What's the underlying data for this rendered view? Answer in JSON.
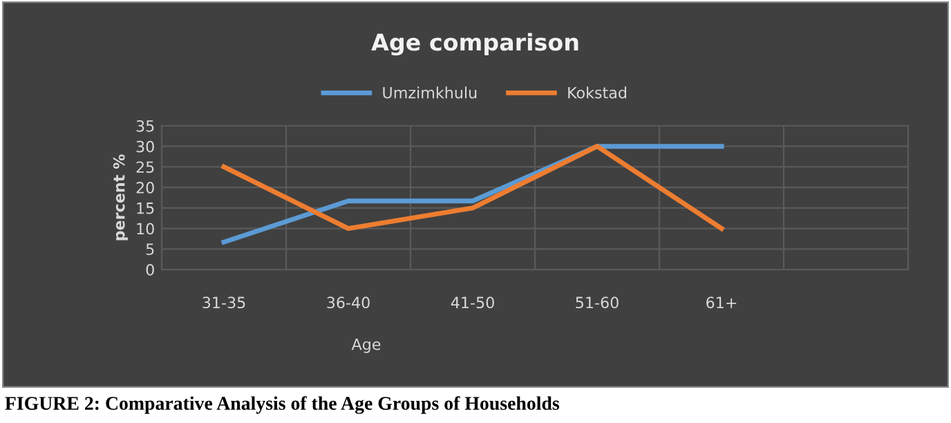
{
  "chart_data": {
    "type": "line",
    "title": "Age comparison",
    "xlabel": "Age",
    "ylabel": "percent %",
    "categories": [
      "31-35",
      "36-40",
      "41-50",
      "51-60",
      "61+",
      null
    ],
    "series": [
      {
        "name": "Umzimkhulu",
        "color": "#5b9bd5",
        "values": [
          6.7,
          16.7,
          16.7,
          30,
          30,
          null
        ]
      },
      {
        "name": "Kokstad",
        "color": "#ed7d31",
        "values": [
          25,
          10,
          15,
          30,
          10,
          null
        ]
      }
    ],
    "ylim": [
      0,
      35
    ],
    "yticks": [
      0,
      5,
      10,
      15,
      20,
      25,
      30,
      35
    ],
    "grid": true,
    "legend": "top",
    "marker": "none",
    "line_style": "solid",
    "annotations": [
      "FIGURE 2: Comparative Analysis of the Age Groups of Households"
    ]
  }
}
